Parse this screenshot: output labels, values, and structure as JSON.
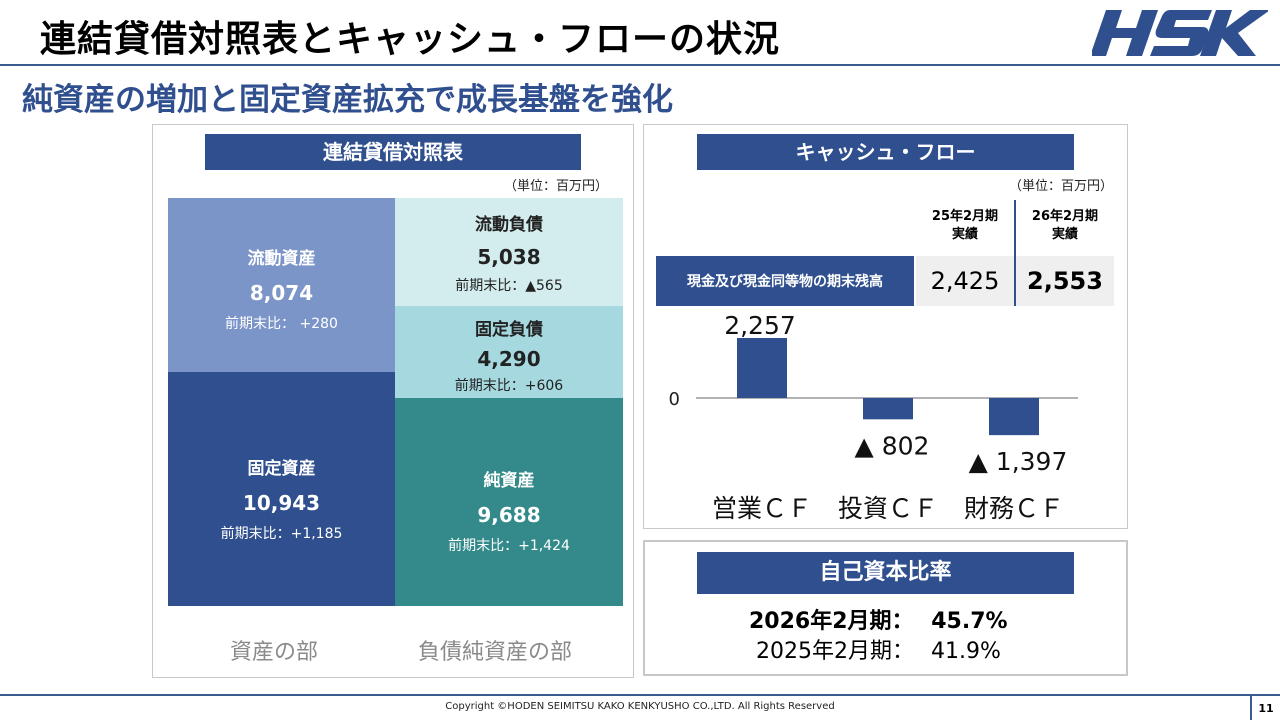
{
  "header": {
    "title": "連結貸借対照表とキャッシュ・フローの状況",
    "subtitle": "純資産の増加と固定資産拡充で成長基盤を強化",
    "logo_text": "HSK"
  },
  "balance_sheet": {
    "banner": "連結貸借対照表",
    "unit": "（単位：百万円）",
    "blocks": {
      "current_assets": {
        "name": "流動資産",
        "value": "8,074",
        "diff": "前期末比： +280"
      },
      "fixed_assets": {
        "name": "固定資産",
        "value": "10,943",
        "diff": "前期末比：+1,185"
      },
      "current_liabilities": {
        "name": "流動負債",
        "value": "5,038",
        "diff": "前期末比：▲565"
      },
      "fixed_liabilities": {
        "name": "固定負債",
        "value": "4,290",
        "diff": "前期末比：+606"
      },
      "net_assets": {
        "name": "純資産",
        "value": "9,688",
        "diff": "前期末比：+1,424"
      }
    },
    "captions": {
      "assets": "資産の部",
      "liabilities": "負債純資産の部"
    },
    "colors": {
      "current_assets": "#7b95c9",
      "fixed_assets": "#2f4f8f",
      "current_liabilities": "#d3ecee",
      "fixed_liabilities": "#a6d9df",
      "net_assets": "#348a8a"
    }
  },
  "cash_flow": {
    "banner": "キャッシュ・フロー",
    "unit": "（単位：百万円）",
    "columns": [
      {
        "line1": "25年2月期",
        "line2": "実績"
      },
      {
        "line1": "26年2月期",
        "line2": "実績"
      }
    ],
    "row_label": "現金及び現金同等物の期末残高",
    "values": [
      "2,425",
      "2,553"
    ]
  },
  "chart_data": {
    "type": "bar",
    "title": "",
    "categories": [
      "営業ＣＦ",
      "投資ＣＦ",
      "財務ＣＦ"
    ],
    "values": [
      2257,
      -802,
      -1397
    ],
    "labels": [
      "2,257",
      "▲ 802",
      "▲ 1,397"
    ],
    "zero_label": "0",
    "xlabel": "",
    "ylabel": "",
    "ylim": [
      -1500,
      2400
    ],
    "bar_color": "#2f4f8f"
  },
  "equity_ratio": {
    "banner": "自己資本比率",
    "rows": [
      {
        "period": "2026年2月期：",
        "value": "45.7%"
      },
      {
        "period": "2025年2月期：",
        "value": "41.9%"
      }
    ]
  },
  "footer": {
    "copyright": "Copyright ©HODEN SEIMITSU KAKO KENKYUSHO CO.,LTD. All Rights Reserved",
    "page_number": "11"
  }
}
